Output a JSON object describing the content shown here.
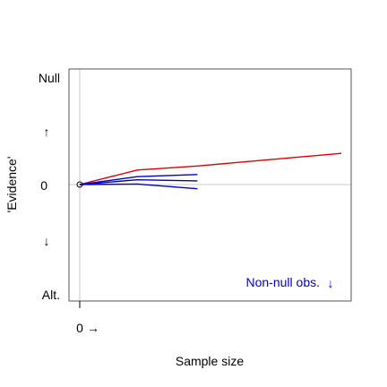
{
  "chart_data": {
    "type": "line",
    "xlabel": "Sample size",
    "ylabel": "'Evidence'",
    "x_tick_label": "0",
    "x_arrow": "→",
    "y_labels": {
      "top": "Null",
      "middle": "0",
      "bottom": "Alt."
    },
    "y_arrows": {
      "up": "↑",
      "down": "↓"
    },
    "annotation": "Non-null obs.",
    "annotation_arrow": "↓",
    "xlim": [
      0,
      10
    ],
    "ylim": [
      -4,
      4
    ],
    "grid": false,
    "colors": {
      "null_series": "#e00000",
      "alt_series": "#0000cc",
      "reference_lines": "#c8c8c8"
    },
    "origin_point": {
      "x": 0,
      "y": 0
    },
    "series": [
      {
        "color": "#e00000",
        "x": [
          0,
          2.2,
          4.5,
          10
        ],
        "y": [
          0,
          0.55,
          0.7,
          1.18
        ]
      },
      {
        "color": "#0000cc",
        "x": [
          0,
          2.2,
          4.5
        ],
        "y": [
          0,
          0.3,
          0.38
        ]
      },
      {
        "color": "#0000cc",
        "x": [
          0,
          2.2,
          4.5
        ],
        "y": [
          0,
          0.18,
          0.14
        ]
      },
      {
        "color": "#0000cc",
        "x": [
          0,
          2.2,
          4.5
        ],
        "y": [
          0,
          0.02,
          -0.16
        ]
      }
    ]
  }
}
